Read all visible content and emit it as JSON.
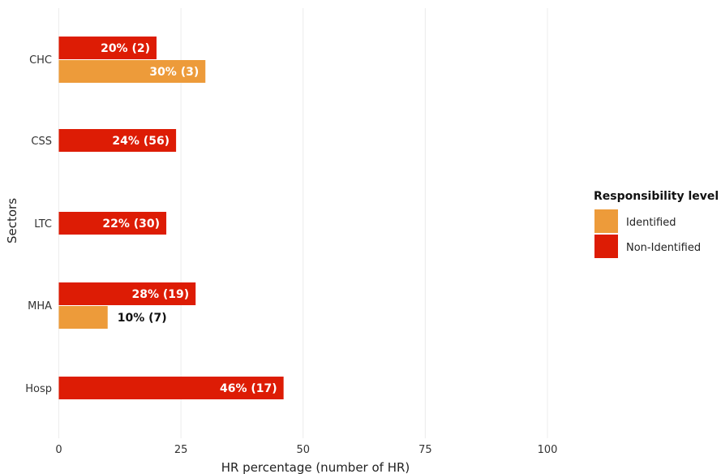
{
  "chart_data": {
    "type": "bar",
    "orientation": "horizontal",
    "categories": [
      "CHC",
      "CSS",
      "LTC",
      "MHA",
      "Hosp"
    ],
    "series": [
      {
        "name": "Non-Identified",
        "color": "#dd1c05",
        "values": [
          20,
          24,
          22,
          28,
          46
        ],
        "labels": [
          "20% (2)",
          "24% (56)",
          "22% (30)",
          "28% (19)",
          "46% (17)"
        ]
      },
      {
        "name": "Identified",
        "color": "#ed9b3a",
        "values": [
          30,
          null,
          null,
          10,
          null
        ],
        "labels": [
          "30% (3)",
          null,
          null,
          "10% (7)",
          null
        ]
      }
    ],
    "xlabel": "HR percentage (number of HR)",
    "ylabel": "Sectors",
    "xlim": [
      0,
      100
    ],
    "xticks": [
      "0",
      "25",
      "50",
      "75",
      "100"
    ],
    "grid": true,
    "legend": {
      "title": "Responsibility level",
      "position": "right",
      "entries": [
        "Identified",
        "Non-Identified"
      ]
    }
  }
}
